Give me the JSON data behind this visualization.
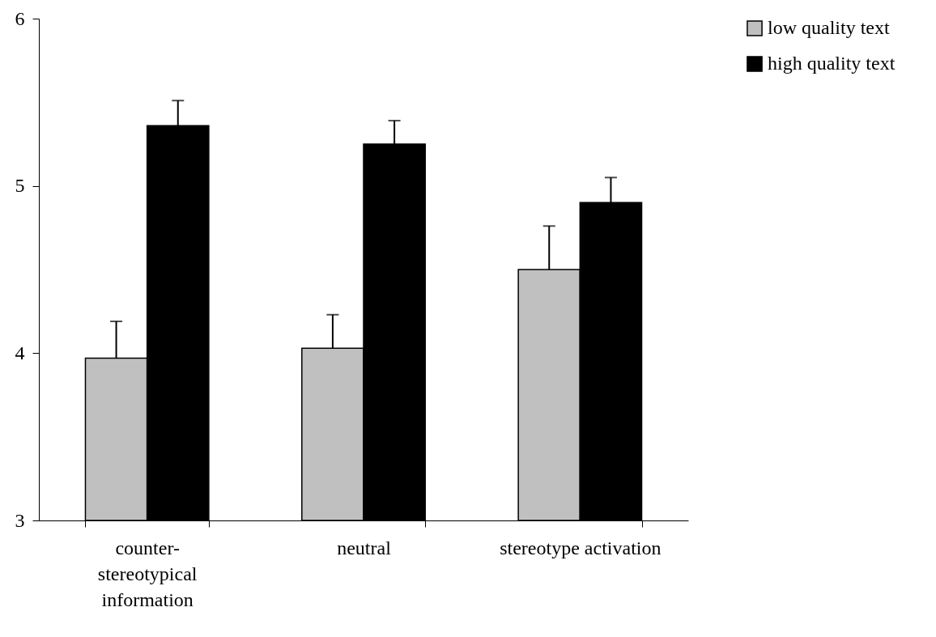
{
  "chart_data": {
    "type": "bar",
    "categories": [
      "counter-\nstereotypical\ninformation",
      "neutral",
      "stereotype activation"
    ],
    "series": [
      {
        "name": "low quality text",
        "color": "#c0c0c0",
        "values": [
          3.97,
          4.03,
          4.5
        ],
        "errors": [
          [
            3.97,
            4.19
          ],
          [
            4.03,
            4.23
          ],
          [
            4.5,
            4.76
          ]
        ]
      },
      {
        "name": "high quality text",
        "color": "#000000",
        "values": [
          5.36,
          5.25,
          4.9
        ],
        "errors": [
          [
            5.36,
            5.51
          ],
          [
            5.25,
            5.39
          ],
          [
            4.9,
            5.05
          ]
        ]
      }
    ],
    "ylim": [
      3,
      6
    ],
    "yticks": [
      3,
      4,
      5,
      6
    ],
    "grid": false,
    "legend": "top right"
  }
}
